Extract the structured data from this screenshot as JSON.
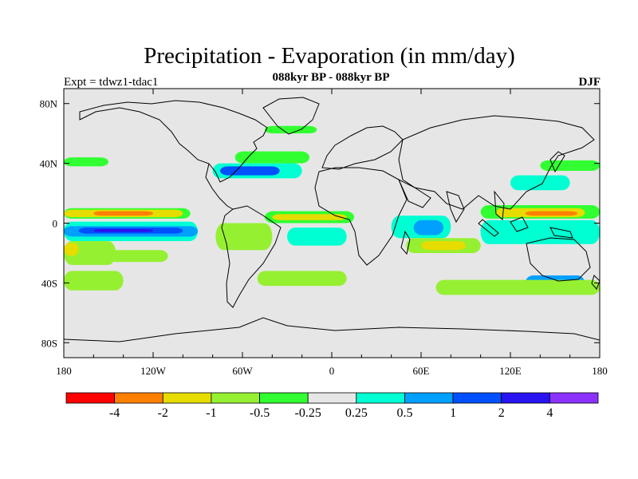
{
  "title": "Precipitation - Evaporation (in mm/day)",
  "subtitle": "088kyr BP - 088kyr BP",
  "experiment": "Expt = tdwz1-tdac1",
  "season": "DJF",
  "background_color": "#e6e6e6",
  "map": {
    "projection": "cylindrical-equidistant",
    "lon_range": [
      -180,
      180
    ],
    "lat_range": [
      -90,
      90
    ],
    "x_ticks": [
      {
        "value": -180,
        "label": "180"
      },
      {
        "value": -120,
        "label": "120W"
      },
      {
        "value": -60,
        "label": "60W"
      },
      {
        "value": 0,
        "label": "0"
      },
      {
        "value": 60,
        "label": "60E"
      },
      {
        "value": 120,
        "label": "120E"
      },
      {
        "value": 180,
        "label": "180"
      }
    ],
    "y_ticks": [
      {
        "value": 80,
        "label": "80N"
      },
      {
        "value": 40,
        "label": "40N"
      },
      {
        "value": 0,
        "label": "0"
      },
      {
        "value": -40,
        "label": "40S"
      },
      {
        "value": -80,
        "label": "80S"
      }
    ]
  },
  "colorbar": {
    "colors": [
      "#ff0000",
      "#ff8000",
      "#e6dc00",
      "#96f032",
      "#32ff32",
      "#e6e6e6",
      "#00ffd2",
      "#00a0ff",
      "#0050ff",
      "#2814f0",
      "#8c32ff"
    ],
    "labels": [
      "-4",
      "-2",
      "-1",
      "-0.5",
      "-0.25",
      "0.25",
      "0.5",
      "1",
      "2",
      "4"
    ]
  },
  "features": [
    {
      "name": "n-pacific-itcz-strip",
      "lon": [
        -180,
        -95
      ],
      "lat": [
        3,
        10
      ],
      "color": "#32ff32"
    },
    {
      "name": "pacific-itcz-yellow",
      "lon": [
        -180,
        -100
      ],
      "lat": [
        4,
        9
      ],
      "color": "#e6dc00"
    },
    {
      "name": "pacific-itcz-orange",
      "lon": [
        -160,
        -120
      ],
      "lat": [
        5,
        8
      ],
      "color": "#ff8000"
    },
    {
      "name": "pacific-dry-tongue-cyan",
      "lon": [
        -180,
        -90
      ],
      "lat": [
        -12,
        1
      ],
      "color": "#00ffd2"
    },
    {
      "name": "pacific-dry-tongue-blue",
      "lon": [
        -180,
        -90
      ],
      "lat": [
        -9,
        -2
      ],
      "color": "#00a0ff"
    },
    {
      "name": "pacific-dry-tongue-dark",
      "lon": [
        -170,
        -100
      ],
      "lat": [
        -7,
        -3
      ],
      "color": "#0050ff"
    },
    {
      "name": "pacific-dry-tongue-core",
      "lon": [
        -160,
        -120
      ],
      "lat": [
        -6,
        -4
      ],
      "color": "#2814f0"
    },
    {
      "name": "spcz-green",
      "lon": [
        -180,
        -145
      ],
      "lat": [
        -28,
        -12
      ],
      "color": "#96f032"
    },
    {
      "name": "spcz-yellow",
      "lon": [
        -180,
        -170
      ],
      "lat": [
        -22,
        -13
      ],
      "color": "#e6dc00"
    },
    {
      "name": "s-pacific-band",
      "lon": [
        -150,
        -110
      ],
      "lat": [
        -26,
        -18
      ],
      "color": "#96f032"
    },
    {
      "name": "s-pacific-south",
      "lon": [
        -180,
        -140
      ],
      "lat": [
        -45,
        -32
      ],
      "color": "#96f032"
    },
    {
      "name": "n-pacific-storm",
      "lon": [
        -180,
        -150
      ],
      "lat": [
        38,
        44
      ],
      "color": "#32ff32"
    },
    {
      "name": "n-atl-dry-cyan",
      "lon": [
        -80,
        -20
      ],
      "lat": [
        30,
        40
      ],
      "color": "#00ffd2"
    },
    {
      "name": "n-atl-dry-blue",
      "lon": [
        -75,
        -35
      ],
      "lat": [
        32,
        38
      ],
      "color": "#0050ff"
    },
    {
      "name": "gulf-stream-green",
      "lon": [
        -65,
        -15
      ],
      "lat": [
        40,
        48
      ],
      "color": "#32ff32"
    },
    {
      "name": "n-atl-high-green",
      "lon": [
        -45,
        -10
      ],
      "lat": [
        60,
        65
      ],
      "color": "#32ff32"
    },
    {
      "name": "atl-itcz-green",
      "lon": [
        -45,
        15
      ],
      "lat": [
        0,
        8
      ],
      "color": "#32ff32"
    },
    {
      "name": "atl-itcz-yellow",
      "lon": [
        -40,
        10
      ],
      "lat": [
        2,
        6
      ],
      "color": "#e6dc00"
    },
    {
      "name": "s-atl-dry-cyan",
      "lon": [
        -30,
        10
      ],
      "lat": [
        -15,
        -3
      ],
      "color": "#00ffd2"
    },
    {
      "name": "amazon-green",
      "lon": [
        -78,
        -40
      ],
      "lat": [
        -18,
        0
      ],
      "color": "#96f032"
    },
    {
      "name": "s-atl-storm",
      "lon": [
        -50,
        10
      ],
      "lat": [
        -42,
        -32
      ],
      "color": "#96f032"
    },
    {
      "name": "indian-dry-cyan",
      "lon": [
        40,
        80
      ],
      "lat": [
        -10,
        5
      ],
      "color": "#00ffd2"
    },
    {
      "name": "indian-dry-blue",
      "lon": [
        55,
        75
      ],
      "lat": [
        -8,
        2
      ],
      "color": "#00a0ff"
    },
    {
      "name": "s-indian-green",
      "lon": [
        50,
        100
      ],
      "lat": [
        -20,
        -10
      ],
      "color": "#96f032"
    },
    {
      "name": "s-indian-yellow",
      "lon": [
        60,
        90
      ],
      "lat": [
        -18,
        -12
      ],
      "color": "#e6dc00"
    },
    {
      "name": "maritime-dry-blue",
      "lon": [
        100,
        170
      ],
      "lat": [
        -10,
        0
      ],
      "color": "#0050ff"
    },
    {
      "name": "maritime-dry-cyan",
      "lon": [
        100,
        180
      ],
      "lat": [
        -14,
        2
      ],
      "color": "#00ffd2"
    },
    {
      "name": "w-pacific-wet-green",
      "lon": [
        100,
        180
      ],
      "lat": [
        3,
        12
      ],
      "color": "#32ff32"
    },
    {
      "name": "w-pacific-wet-yellow",
      "lon": [
        110,
        170
      ],
      "lat": [
        4,
        10
      ],
      "color": "#e6dc00"
    },
    {
      "name": "w-pacific-wet-orange",
      "lon": [
        130,
        165
      ],
      "lat": [
        5,
        8
      ],
      "color": "#ff8000"
    },
    {
      "name": "kuroshio-dry",
      "lon": [
        120,
        160
      ],
      "lat": [
        22,
        32
      ],
      "color": "#00ffd2"
    },
    {
      "name": "kuroshio-green",
      "lon": [
        140,
        180
      ],
      "lat": [
        35,
        42
      ],
      "color": "#32ff32"
    },
    {
      "name": "australia-south-blue",
      "lon": [
        130,
        170
      ],
      "lat": [
        -45,
        -35
      ],
      "color": "#00a0ff"
    },
    {
      "name": "s-ocean-green",
      "lon": [
        70,
        180
      ],
      "lat": [
        -48,
        -38
      ],
      "color": "#96f032"
    }
  ]
}
